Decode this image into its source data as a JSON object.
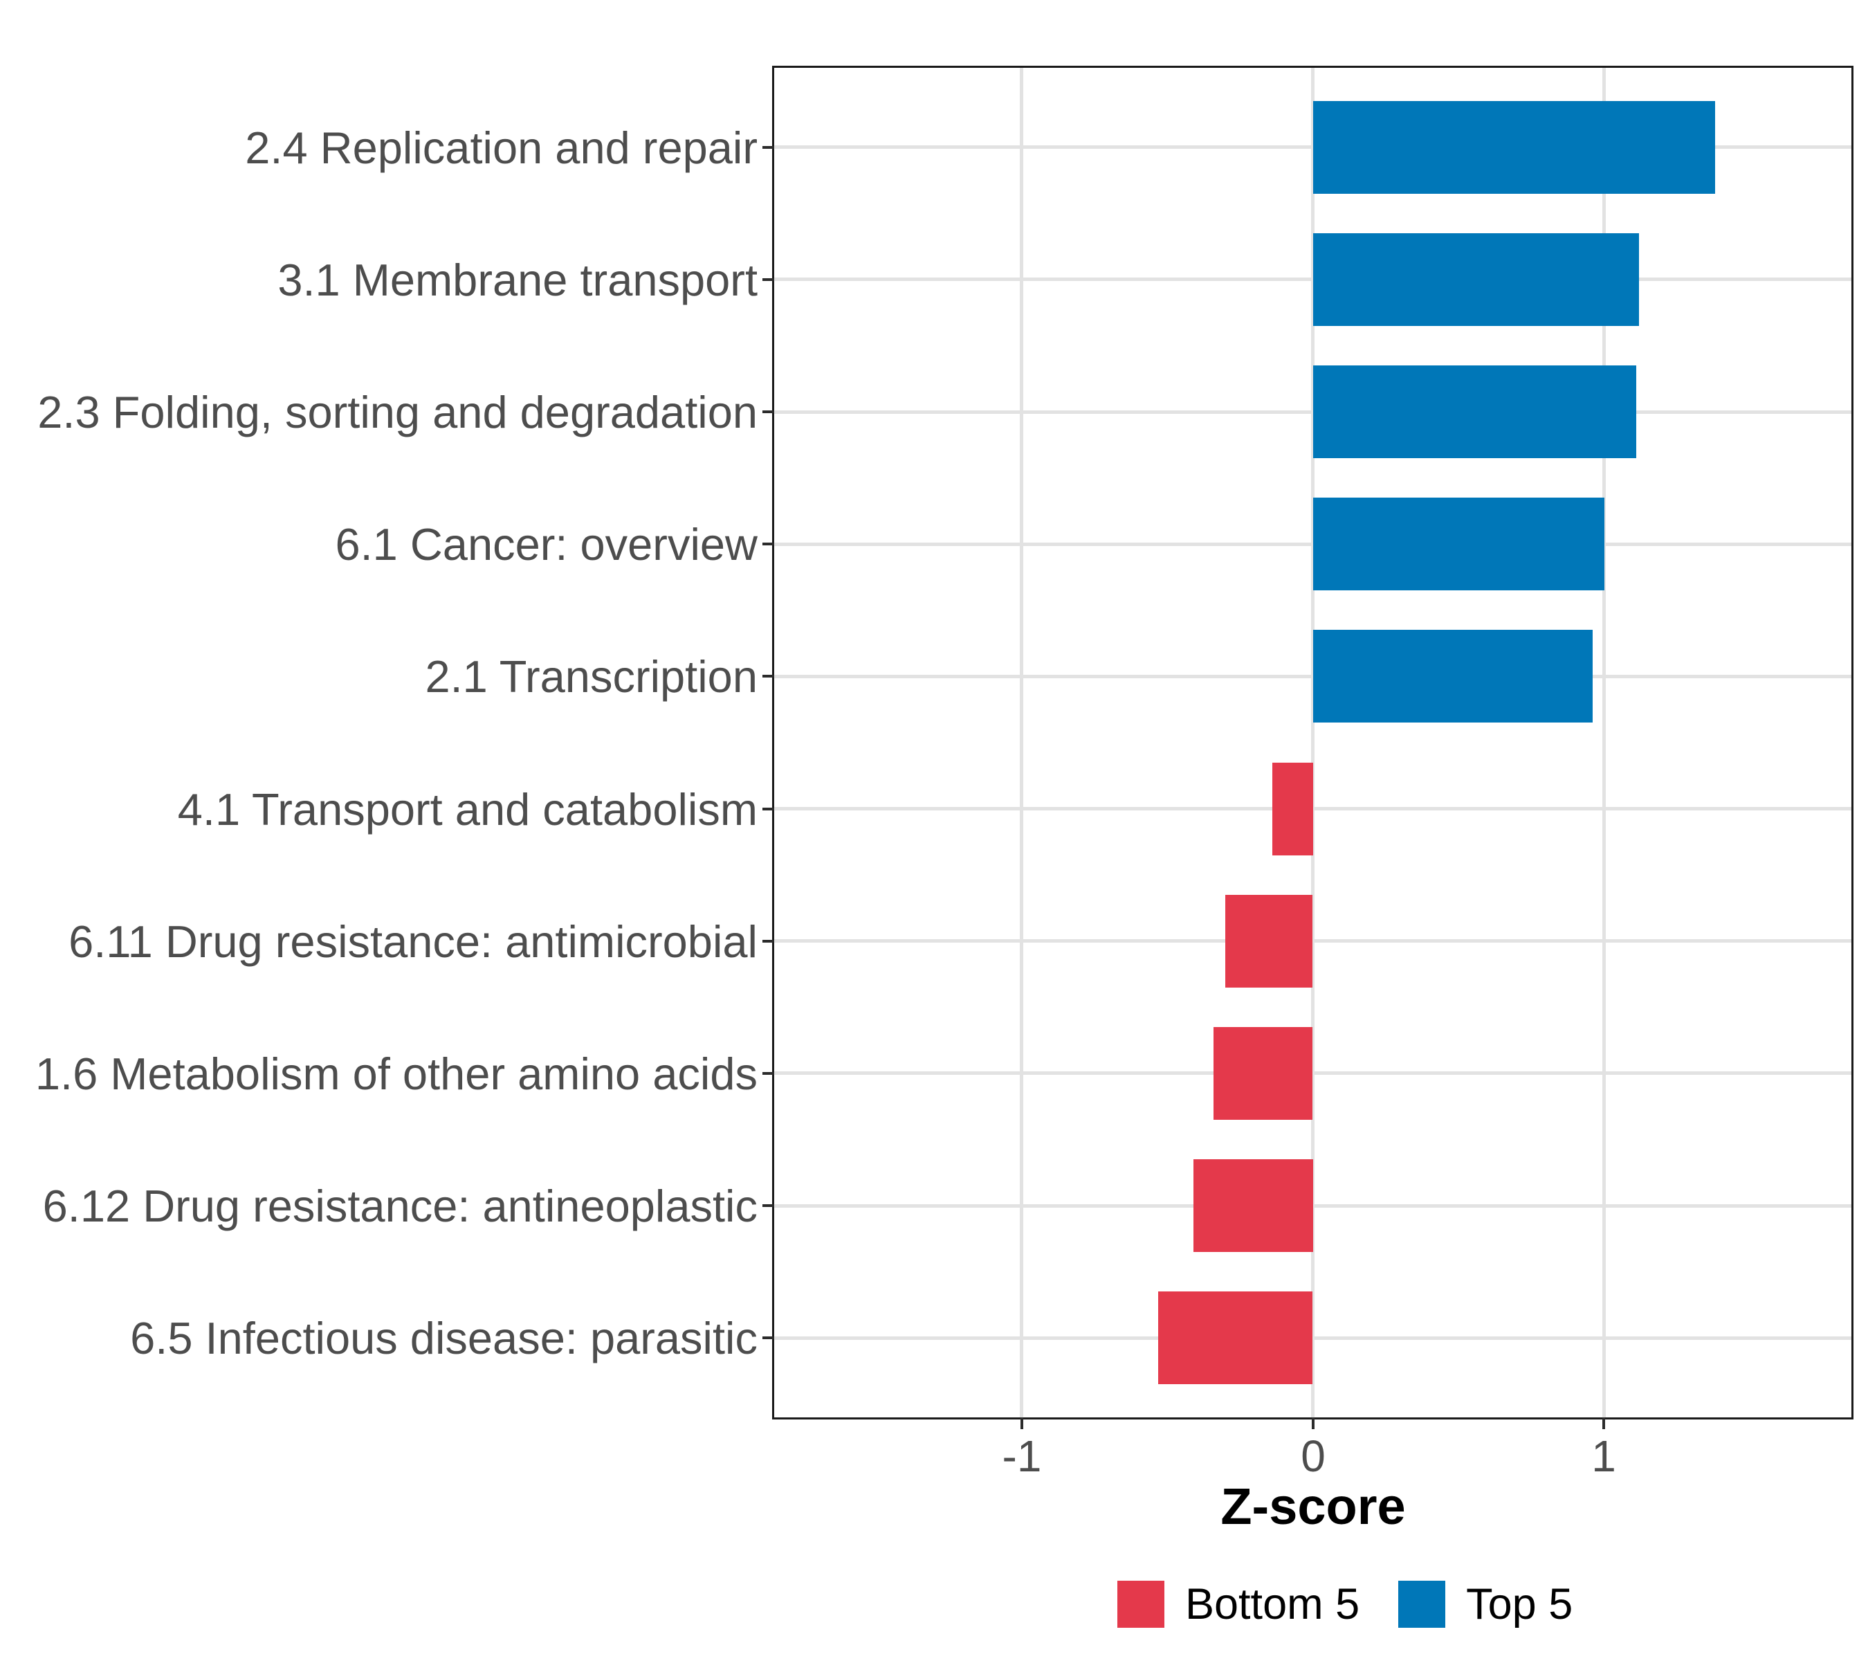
{
  "chart_data": {
    "type": "bar",
    "orientation": "horizontal",
    "title": "",
    "xlabel": "Z-score",
    "ylabel": "",
    "categories": [
      "2.4 Replication and repair",
      "3.1 Membrane transport",
      "2.3 Folding, sorting and degradation",
      "6.1 Cancer: overview",
      "2.1 Transcription",
      "4.1 Transport and catabolism",
      "6.11 Drug resistance: antimicrobial",
      "1.6 Metabolism of other amino acids",
      "6.12 Drug resistance: antineoplastic",
      "6.5 Infectious disease: parasitic"
    ],
    "values": [
      1.38,
      1.12,
      1.11,
      1.0,
      0.96,
      -0.14,
      -0.3,
      -0.34,
      -0.41,
      -0.53
    ],
    "groups": [
      "Top 5",
      "Top 5",
      "Top 5",
      "Top 5",
      "Top 5",
      "Bottom 5",
      "Bottom 5",
      "Bottom 5",
      "Bottom 5",
      "Bottom 5"
    ],
    "group_colors": {
      "Top 5": "#0077B8",
      "Bottom 5": "#E4394B"
    },
    "xlim": [
      -1.85,
      1.85
    ],
    "xticks": [
      -1,
      0,
      1
    ],
    "xtick_labels": [
      "-1",
      "0",
      "1"
    ],
    "grid": true,
    "legend_position": "bottom",
    "legend": [
      {
        "label": "Bottom 5",
        "color": "#E4394B"
      },
      {
        "label": "Top 5",
        "color": "#0077B8"
      }
    ],
    "style_colors": {
      "panel_border": "#1a1a1a",
      "gridline": "#e2e2e2",
      "axis_text": "#4d4d4d",
      "tick_mark": "#2b2b2b",
      "axis_title": "#000000",
      "background": "#ffffff"
    }
  }
}
